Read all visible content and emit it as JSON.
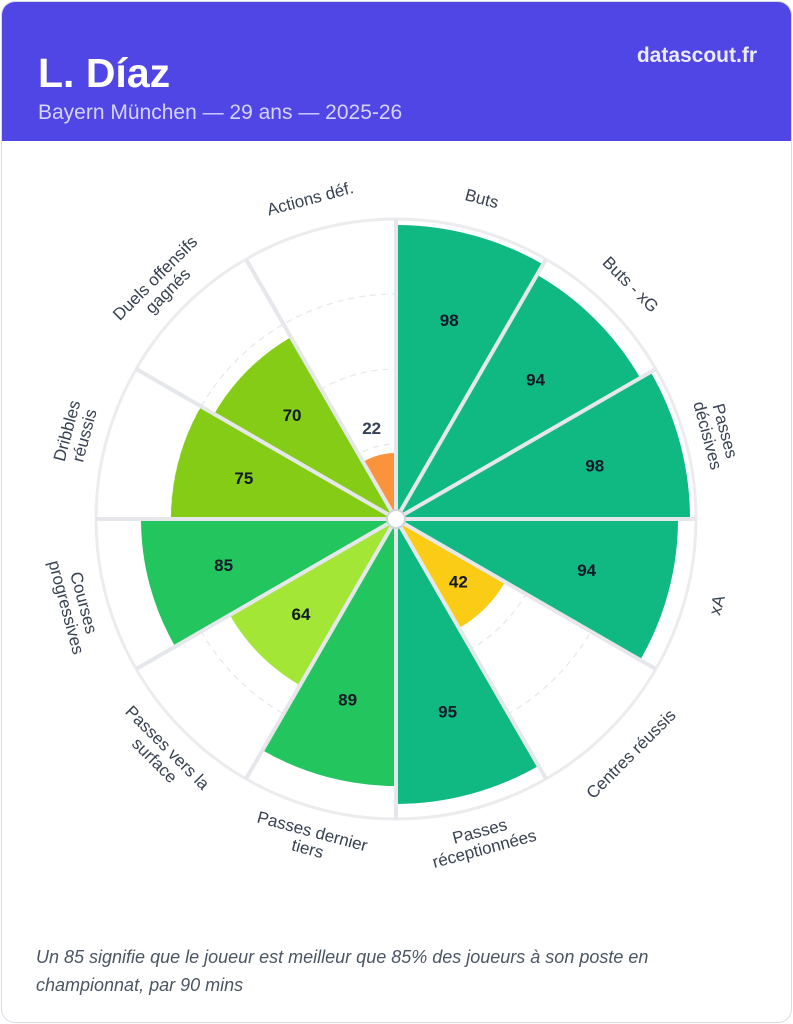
{
  "header": {
    "player_name": "L. Díaz",
    "subtitle": "Bayern München — 29 ans — 2025-26",
    "brand": "datascout.fr"
  },
  "chart_data": {
    "type": "pie",
    "subtype": "percentile-pizza",
    "scale_max": 100,
    "gridlines": [
      25,
      50,
      75
    ],
    "categories": [
      {
        "label": [
          "Buts"
        ],
        "value": 98,
        "color": "#10b981"
      },
      {
        "label": [
          "Buts - xG"
        ],
        "value": 94,
        "color": "#10b981"
      },
      {
        "label": [
          "Passes",
          "décisives"
        ],
        "value": 98,
        "color": "#10b981"
      },
      {
        "label": [
          "xA"
        ],
        "value": 94,
        "color": "#10b981"
      },
      {
        "label": [
          "Centres réussis"
        ],
        "value": 42,
        "color": "#facc15"
      },
      {
        "label": [
          "Passes",
          "réceptionnées"
        ],
        "value": 95,
        "color": "#10b981"
      },
      {
        "label": [
          "Passes dernier",
          "tiers"
        ],
        "value": 89,
        "color": "#22c55e"
      },
      {
        "label": [
          "Passes vers la",
          "surface"
        ],
        "value": 64,
        "color": "#a3e635"
      },
      {
        "label": [
          "Courses",
          "progressives"
        ],
        "value": 85,
        "color": "#22c55e"
      },
      {
        "label": [
          "Dribbles",
          "réussis"
        ],
        "value": 75,
        "color": "#84cc16"
      },
      {
        "label": [
          "Duels offensifs",
          "gagnés"
        ],
        "value": 70,
        "color": "#84cc16"
      },
      {
        "label": [
          "Actions déf."
        ],
        "value": 22,
        "color": "#fb923c"
      }
    ]
  },
  "footnote": "Un 85 signifie que le joueur est meilleur que 85% des joueurs à son poste en championnat, par 90 mins"
}
